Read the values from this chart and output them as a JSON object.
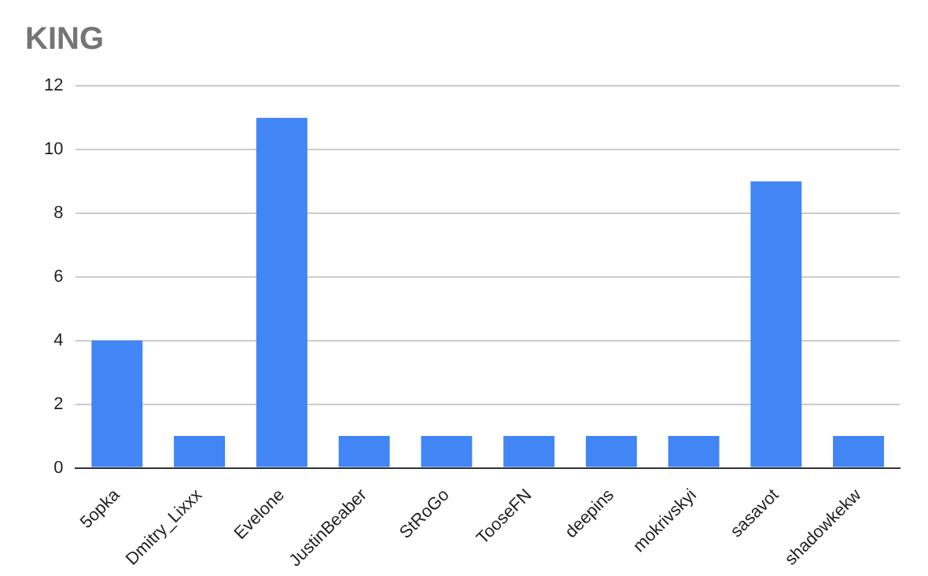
{
  "chart_data": {
    "type": "bar",
    "title": "KING",
    "categories": [
      "5opka",
      "Dmitry_Lixxx",
      "Evelone",
      "JustinBeaber",
      "StRoGo",
      "TooseFN",
      "deepins",
      "mokrivskyi",
      "sasavot",
      "shadowkekw"
    ],
    "values": [
      4,
      1,
      11,
      1,
      1,
      1,
      1,
      1,
      9,
      1
    ],
    "color": "#4285f4",
    "ylim": [
      0,
      12
    ],
    "yticks": [
      0,
      2,
      4,
      6,
      8,
      10,
      12
    ],
    "grid": "y",
    "legend": false
  }
}
